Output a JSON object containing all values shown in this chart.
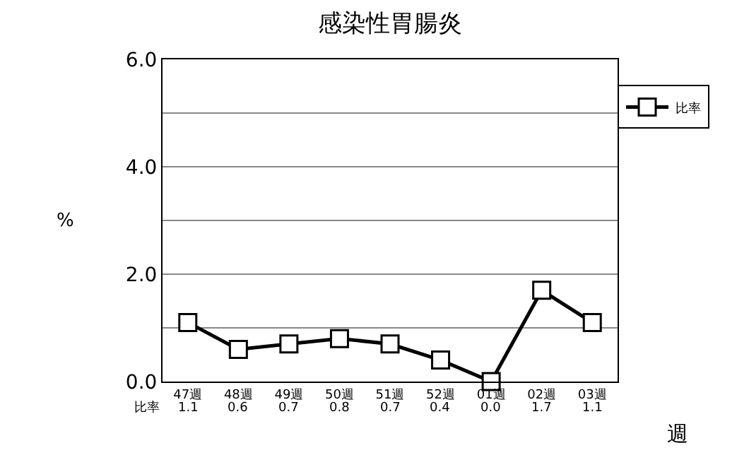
{
  "chart_data": {
    "type": "line",
    "title": "感染性胃腸炎",
    "xlabel": "週",
    "ylabel": "%",
    "categories": [
      "47週",
      "48週",
      "49週",
      "50週",
      "51週",
      "52週",
      "01週",
      "02週",
      "03週"
    ],
    "series": [
      {
        "name": "比率",
        "color": "#000000",
        "values": [
          1.1,
          0.6,
          0.7,
          0.8,
          0.7,
          0.4,
          0.0,
          1.7,
          1.1
        ],
        "value_labels": [
          "1.1",
          "0.6",
          "0.7",
          "0.8",
          "0.7",
          "0.4",
          "0.0",
          "1.7",
          "1.1"
        ]
      }
    ],
    "ylim": [
      0,
      6
    ],
    "yticks": [
      {
        "value": 0,
        "label": "0.0"
      },
      {
        "value": 1,
        "label": null
      },
      {
        "value": 2,
        "label": "2.0"
      },
      {
        "value": 3,
        "label": null
      },
      {
        "value": 4,
        "label": "4.0"
      },
      {
        "value": 5,
        "label": null
      },
      {
        "value": 6,
        "label": "6.0"
      }
    ],
    "grid": "y",
    "legend": "top right",
    "marker": "square",
    "line_style": "solid"
  }
}
